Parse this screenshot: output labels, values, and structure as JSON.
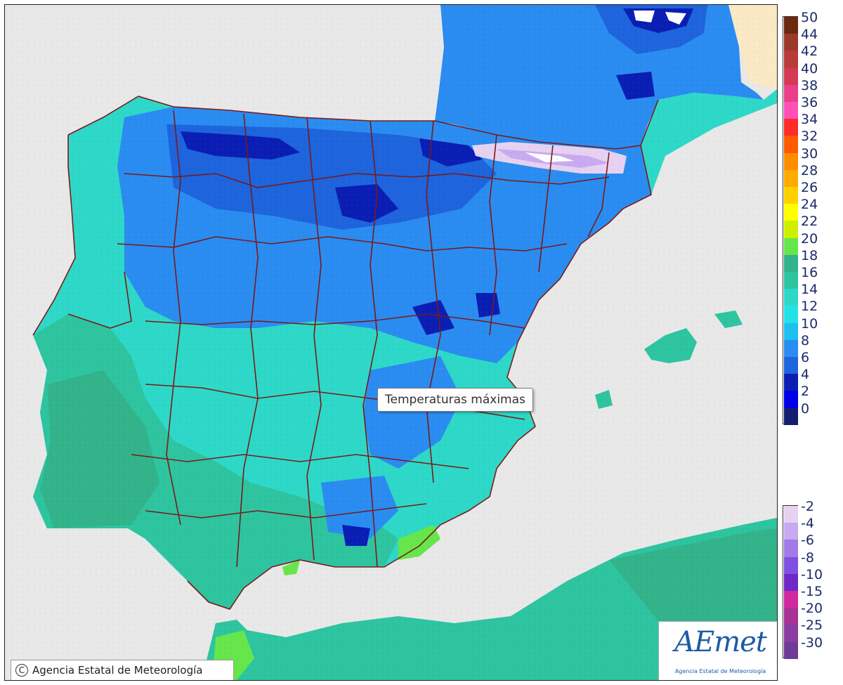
{
  "tooltip": "Temperaturas máximas",
  "copyright": "Agencia Estatal de Meteorología",
  "logo": {
    "text": "AEmet",
    "subtitle": "Agencia Estatal de Meteorología"
  },
  "legend_positive": [
    {
      "label": "50",
      "color": "#6b2a10"
    },
    {
      "label": "44",
      "color": "#9c3a2a"
    },
    {
      "label": "42",
      "color": "#b83a3a"
    },
    {
      "label": "40",
      "color": "#d43a55"
    },
    {
      "label": "38",
      "color": "#e8408a"
    },
    {
      "label": "36",
      "color": "#ff50b8"
    },
    {
      "label": "34",
      "color": "#ff2a2a"
    },
    {
      "label": "32",
      "color": "#ff5a00"
    },
    {
      "label": "30",
      "color": "#ff8c00"
    },
    {
      "label": "28",
      "color": "#ffaa00"
    },
    {
      "label": "26",
      "color": "#ffd000"
    },
    {
      "label": "24",
      "color": "#ffff00"
    },
    {
      "label": "22",
      "color": "#ccf000"
    },
    {
      "label": "20",
      "color": "#66e64a"
    },
    {
      "label": "18",
      "color": "#33b38a"
    },
    {
      "label": "16",
      "color": "#2ec4a0"
    },
    {
      "label": "14",
      "color": "#2ed8c8"
    },
    {
      "label": "12",
      "color": "#22e2e8"
    },
    {
      "label": "10",
      "color": "#1ec0f0"
    },
    {
      "label": "8",
      "color": "#2a8cf0"
    },
    {
      "label": "6",
      "color": "#1e64dc"
    },
    {
      "label": "4",
      "color": "#0a1eb4"
    },
    {
      "label": "2",
      "color": "#0000e6"
    },
    {
      "label": "0",
      "color": "#141e6e"
    }
  ],
  "legend_negative": [
    {
      "label": "-2",
      "color": "#e6d2f0"
    },
    {
      "label": "-4",
      "color": "#c8aaf0"
    },
    {
      "label": "-6",
      "color": "#a07ae6"
    },
    {
      "label": "-8",
      "color": "#8050e0"
    },
    {
      "label": "-10",
      "color": "#7028c8"
    },
    {
      "label": "-15",
      "color": "#d028a0"
    },
    {
      "label": "-20",
      "color": "#a83296"
    },
    {
      "label": "-25",
      "color": "#8c3ca0"
    },
    {
      "label": "-30",
      "color": "#6e3c96"
    }
  ],
  "colors": {
    "sea": "#e8e8e8",
    "france_land": "#fbe8c4",
    "boundary": "#7a1a1a"
  }
}
